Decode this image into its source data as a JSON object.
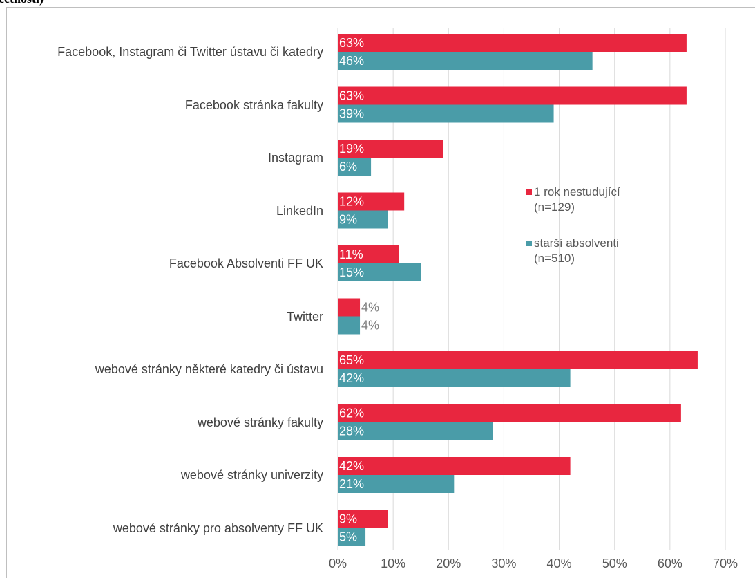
{
  "chart_data": {
    "type": "hbar",
    "title": "četnosti)",
    "categories": [
      "Facebook, Instagram či Twitter ústavu či katedry",
      "Facebook stránka fakulty",
      "Instagram",
      "LinkedIn",
      "Facebook Absolventi FF UK",
      "Twitter",
      "webové stránky některé katedry či ústavu",
      "webové stránky fakulty",
      "webové stránky univerzity",
      "webové stránky pro absolventy FF UK"
    ],
    "series": [
      {
        "name": "1 rok nestudující (n=129)",
        "color": "#e8263f",
        "values": [
          63,
          63,
          19,
          12,
          11,
          4,
          65,
          62,
          42,
          9
        ],
        "value_labels": [
          "63%",
          "63%",
          "19%",
          "12%",
          "11%",
          "4%",
          "65%",
          "62%",
          "42%",
          "9%"
        ]
      },
      {
        "name": "starší absolventi (n=510)",
        "color": "#4a9ca8",
        "values": [
          46,
          39,
          6,
          9,
          15,
          4,
          42,
          28,
          21,
          5
        ],
        "value_labels": [
          "46%",
          "39%",
          "6%",
          "9%",
          "15%",
          "4%",
          "42%",
          "28%",
          "21%",
          "5%"
        ]
      }
    ],
    "xlim": [
      0,
      70
    ],
    "xticks": [
      {
        "value": 0,
        "label": "0%"
      },
      {
        "value": 10,
        "label": "10%"
      },
      {
        "value": 20,
        "label": "20%"
      },
      {
        "value": 30,
        "label": "30%"
      },
      {
        "value": 40,
        "label": "40%"
      },
      {
        "value": 50,
        "label": "50%"
      },
      {
        "value": 60,
        "label": "60%"
      },
      {
        "value": 70,
        "label": "70%"
      }
    ],
    "grid": true,
    "legend": "right"
  }
}
